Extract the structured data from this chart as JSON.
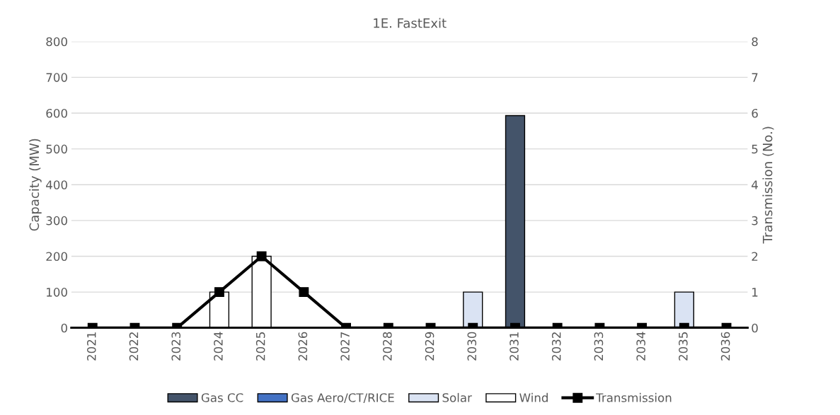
{
  "chart_data": {
    "type": "bar",
    "title": "1E. FastExit",
    "ylabel": "Capacity (MW)",
    "y2label": "Transmission (No.)",
    "categories": [
      "2021",
      "2022",
      "2023",
      "2024",
      "2025",
      "2026",
      "2027",
      "2028",
      "2029",
      "2030",
      "2031",
      "2032",
      "2033",
      "2034",
      "2035",
      "2036"
    ],
    "stacked": true,
    "series": [
      {
        "name": "Gas CC",
        "color": "#44546a",
        "values": [
          0,
          0,
          0,
          0,
          0,
          0,
          0,
          0,
          0,
          0,
          593,
          0,
          0,
          0,
          0,
          0
        ]
      },
      {
        "name": "Gas Aero/CT/RICE",
        "color": "#4472c4",
        "values": [
          0,
          0,
          0,
          0,
          0,
          0,
          0,
          0,
          0,
          0,
          0,
          0,
          0,
          0,
          0,
          0
        ]
      },
      {
        "name": "Solar",
        "color": "#dae3f3",
        "values": [
          0,
          0,
          0,
          0,
          0,
          0,
          0,
          0,
          0,
          100,
          0,
          0,
          0,
          0,
          100,
          0
        ]
      },
      {
        "name": "Wind",
        "color": "#ffffff",
        "values": [
          0,
          0,
          0,
          100,
          200,
          0,
          0,
          0,
          0,
          0,
          0,
          0,
          0,
          0,
          0,
          0
        ]
      },
      {
        "name": "Transmission",
        "type": "line",
        "axis": "y2",
        "color": "#000000",
        "marker": "square",
        "values": [
          0,
          0,
          0,
          1,
          2,
          1,
          0,
          0,
          0,
          0,
          0,
          0,
          0,
          0,
          0,
          0
        ]
      }
    ],
    "ylim": [
      0,
      800
    ],
    "yticks": [
      0,
      100,
      200,
      300,
      400,
      500,
      600,
      700,
      800
    ],
    "y2lim": [
      0,
      8
    ],
    "y2ticks": [
      0,
      1,
      2,
      3,
      4,
      5,
      6,
      7,
      8
    ],
    "grid": "y",
    "legend": "bottom"
  }
}
